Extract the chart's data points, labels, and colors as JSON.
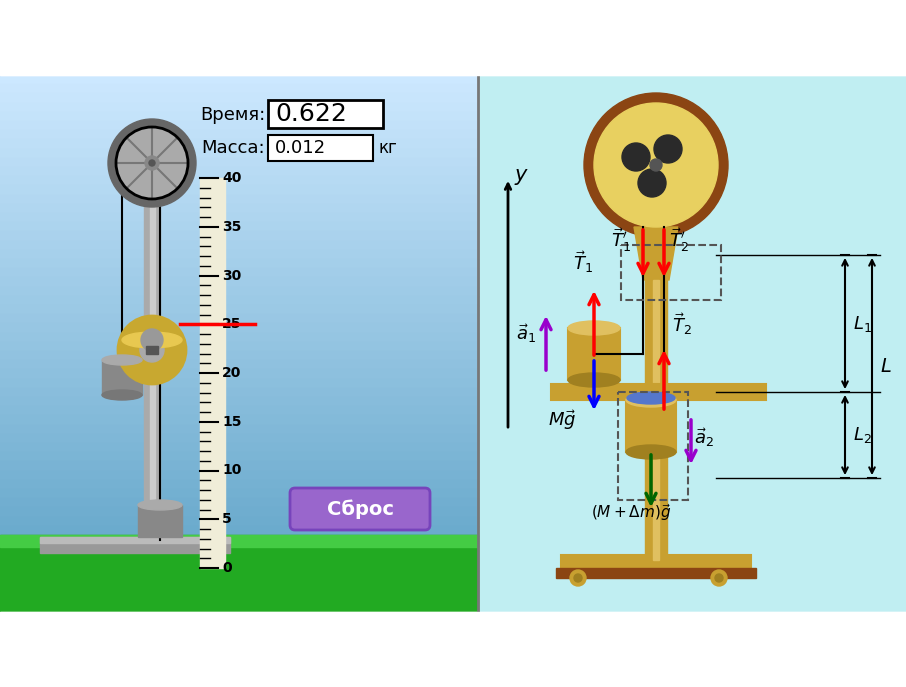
{
  "time_label": "Время:",
  "time_value": "0.622",
  "mass_label": "Масса:",
  "mass_value": "0.012",
  "mass_unit": "кг",
  "reset_button": "Сброс",
  "reset_color": "#9966CC",
  "sky_top": "#CCE8FF",
  "sky_bottom": "#7AB0D8",
  "grass_color": "#33CC33",
  "grass_top": "#44DD44",
  "right_bg": "#C0EEF0",
  "pole_color": "#AAAAAA",
  "pole_highlight": "#CCCCCC",
  "mass_color": "#888888",
  "donut_color": "#D4B040",
  "brown": "#8B4513",
  "gold": "#C8A030",
  "gold_light": "#E0C060"
}
